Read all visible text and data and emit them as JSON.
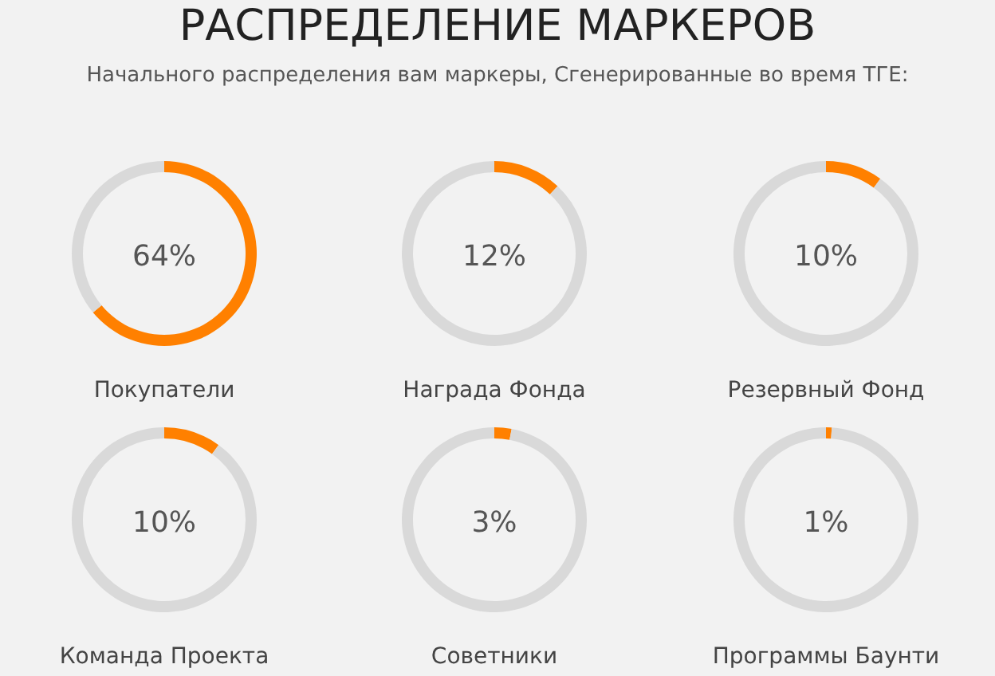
{
  "chart_data": [
    {
      "type": "other",
      "title": "РАСПРЕДЕЛЕНИЕ МАРКЕРОВ",
      "subtitle": "Начального распределения вам маркеры, Сгенерированные во время ТГЕ:"
    },
    {
      "type": "donut",
      "title": "Покупатели",
      "categories": [
        null,
        null
      ],
      "values": [
        64,
        36
      ],
      "colors": [
        "#ff8000",
        "#d9d9d9"
      ],
      "annotations": [
        "64%"
      ]
    },
    {
      "type": "donut",
      "title": "Награда Фонда",
      "categories": [
        null,
        null
      ],
      "values": [
        12,
        88
      ],
      "colors": [
        "#ff8000",
        "#d9d9d9"
      ],
      "annotations": [
        "12%"
      ]
    },
    {
      "type": "donut",
      "title": "Резервный Фонд",
      "categories": [
        null,
        null
      ],
      "values": [
        10,
        90
      ],
      "colors": [
        "#ff8000",
        "#d9d9d9"
      ],
      "annotations": [
        "10%"
      ]
    },
    {
      "type": "donut",
      "title": "Команда Проекта",
      "categories": [
        null,
        null
      ],
      "values": [
        10,
        90
      ],
      "colors": [
        "#ff8000",
        "#d9d9d9"
      ],
      "annotations": [
        "10%"
      ]
    },
    {
      "type": "donut",
      "title": "Советники",
      "categories": [
        null,
        null
      ],
      "values": [
        3,
        97
      ],
      "colors": [
        "#ff8000",
        "#d9d9d9"
      ],
      "annotations": [
        "3%"
      ]
    },
    {
      "type": "donut",
      "title": "Программы Баунти",
      "categories": [
        null,
        null
      ],
      "values": [
        1,
        99
      ],
      "colors": [
        "#ff8000",
        "#d9d9d9"
      ],
      "annotations": [
        "1%"
      ]
    }
  ]
}
